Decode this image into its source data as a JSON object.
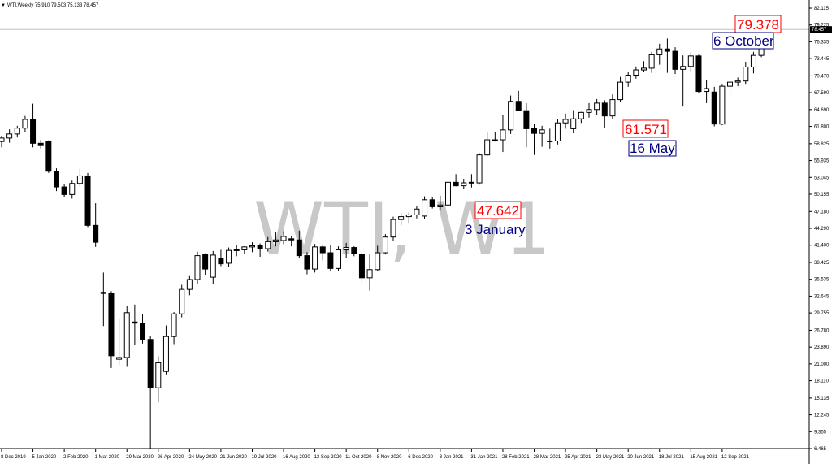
{
  "header": {
    "menu_icon": "triangle-down-icon",
    "text": "WTI,Weekly  75.910 79.503 75.133 78.457"
  },
  "watermark": "WTI, W1",
  "current_price_label": "78.457",
  "colors": {
    "up_body": "#ffffff",
    "down_body": "#000000",
    "line": "#000000",
    "ann_red": "#ff0000",
    "ann_blue": "#000080",
    "watermark": "#c8c8c8"
  },
  "annotations": [
    {
      "price_text": "79.378",
      "date_text": "6 October"
    },
    {
      "price_text": "61.571",
      "date_text": "16 May"
    },
    {
      "price_text": "47.642",
      "date_text": "3 January"
    }
  ],
  "chart_data": {
    "type": "candlestick",
    "ylim": [
      6.465,
      82.115
    ],
    "y_ticks": [
      "82.115",
      "79.225",
      "76.335",
      "73.445",
      "70.470",
      "67.590",
      "64.690",
      "61.800",
      "58.825",
      "55.935",
      "53.045",
      "50.155",
      "47.180",
      "44.290",
      "41.400",
      "38.425",
      "35.535",
      "32.645",
      "29.755",
      "26.780",
      "23.890",
      "21.000",
      "18.110",
      "15.135",
      "12.245",
      "9.355",
      "6.465"
    ],
    "x_ticks": [
      "8 Dec 2019",
      "5 Jan 2020",
      "2 Feb 2020",
      "1 Mar 2020",
      "29 Mar 2020",
      "26 Apr 2020",
      "24 May 2020",
      "21 Jun 2020",
      "19 Jul 2020",
      "16 Aug 2020",
      "13 Sep 2020",
      "11 Oct 2020",
      "8 Nov 2020",
      "6 Dec 2020",
      "3 Jan 2021",
      "31 Jan 2021",
      "28 Feb 2021",
      "28 Mar 2021",
      "25 Apr 2021",
      "23 May 2021",
      "20 Jun 2021",
      "18 Jul 2021",
      "15 Aug 2021",
      "12 Sep 2021"
    ],
    "candles": [
      {
        "o": 59.2,
        "h": 60.2,
        "l": 58.2,
        "c": 59.8
      },
      {
        "o": 59.8,
        "h": 61.3,
        "l": 59.0,
        "c": 60.5
      },
      {
        "o": 60.5,
        "h": 61.9,
        "l": 59.9,
        "c": 61.5
      },
      {
        "o": 61.5,
        "h": 63.6,
        "l": 60.8,
        "c": 63.0
      },
      {
        "o": 63.0,
        "h": 65.7,
        "l": 58.2,
        "c": 58.9
      },
      {
        "o": 58.9,
        "h": 59.5,
        "l": 58.0,
        "c": 58.5
      },
      {
        "o": 59.2,
        "h": 59.4,
        "l": 53.8,
        "c": 54.1
      },
      {
        "o": 54.1,
        "h": 54.6,
        "l": 50.7,
        "c": 51.4
      },
      {
        "o": 51.4,
        "h": 51.9,
        "l": 49.6,
        "c": 50.1
      },
      {
        "o": 50.1,
        "h": 52.5,
        "l": 49.4,
        "c": 52.0
      },
      {
        "o": 52.0,
        "h": 54.5,
        "l": 51.5,
        "c": 53.3
      },
      {
        "o": 53.3,
        "h": 53.8,
        "l": 44.5,
        "c": 44.8
      },
      {
        "o": 44.8,
        "h": 48.6,
        "l": 41.1,
        "c": 41.9
      },
      {
        "o": 33.3,
        "h": 36.7,
        "l": 27.5,
        "c": 33.1
      },
      {
        "o": 33.1,
        "h": 33.5,
        "l": 20.3,
        "c": 22.4
      },
      {
        "o": 21.8,
        "h": 28.7,
        "l": 20.8,
        "c": 22.1
      },
      {
        "o": 22.1,
        "h": 30.9,
        "l": 20.5,
        "c": 29.8
      },
      {
        "o": 28.2,
        "h": 31.2,
        "l": 24.3,
        "c": 28.0
      },
      {
        "o": 28.0,
        "h": 29.5,
        "l": 24.5,
        "c": 25.2
      },
      {
        "o": 25.2,
        "h": 25.8,
        "l": 6.5,
        "c": 16.9
      },
      {
        "o": 16.9,
        "h": 22.3,
        "l": 14.4,
        "c": 21.2
      },
      {
        "o": 19.7,
        "h": 27.6,
        "l": 19.2,
        "c": 25.7
      },
      {
        "o": 25.7,
        "h": 29.9,
        "l": 24.4,
        "c": 29.6
      },
      {
        "o": 29.6,
        "h": 34.6,
        "l": 29.0,
        "c": 33.8
      },
      {
        "o": 33.8,
        "h": 36.1,
        "l": 32.8,
        "c": 35.5
      },
      {
        "o": 35.5,
        "h": 40.3,
        "l": 34.8,
        "c": 39.6
      },
      {
        "o": 39.8,
        "h": 40.0,
        "l": 36.2,
        "c": 37.3
      },
      {
        "o": 35.9,
        "h": 40.4,
        "l": 34.7,
        "c": 39.7
      },
      {
        "o": 39.1,
        "h": 40.6,
        "l": 37.8,
        "c": 38.2
      },
      {
        "o": 38.3,
        "h": 41.0,
        "l": 37.6,
        "c": 40.5
      },
      {
        "o": 40.5,
        "h": 41.4,
        "l": 39.5,
        "c": 40.6
      },
      {
        "o": 40.6,
        "h": 41.2,
        "l": 39.9,
        "c": 41.1
      },
      {
        "o": 41.1,
        "h": 41.9,
        "l": 40.2,
        "c": 41.3
      },
      {
        "o": 41.3,
        "h": 41.7,
        "l": 39.4,
        "c": 40.8
      },
      {
        "o": 40.8,
        "h": 42.8,
        "l": 40.3,
        "c": 42.0
      },
      {
        "o": 42.0,
        "h": 43.6,
        "l": 41.2,
        "c": 42.3
      },
      {
        "o": 42.2,
        "h": 43.8,
        "l": 41.6,
        "c": 42.9
      },
      {
        "o": 42.5,
        "h": 43.0,
        "l": 41.2,
        "c": 42.3
      },
      {
        "o": 42.3,
        "h": 43.9,
        "l": 39.2,
        "c": 39.6
      },
      {
        "o": 39.6,
        "h": 40.2,
        "l": 36.4,
        "c": 37.3
      },
      {
        "o": 37.3,
        "h": 41.6,
        "l": 36.7,
        "c": 41.1
      },
      {
        "o": 41.1,
        "h": 41.4,
        "l": 38.8,
        "c": 40.1
      },
      {
        "o": 40.1,
        "h": 41.4,
        "l": 37.0,
        "c": 37.4
      },
      {
        "o": 37.4,
        "h": 41.2,
        "l": 37.0,
        "c": 40.6
      },
      {
        "o": 40.6,
        "h": 41.8,
        "l": 39.2,
        "c": 41.0
      },
      {
        "o": 41.0,
        "h": 41.2,
        "l": 39.5,
        "c": 40.0
      },
      {
        "o": 39.8,
        "h": 40.2,
        "l": 34.9,
        "c": 35.8
      },
      {
        "o": 35.8,
        "h": 39.8,
        "l": 33.6,
        "c": 37.2
      },
      {
        "o": 37.2,
        "h": 41.3,
        "l": 36.9,
        "c": 40.1
      },
      {
        "o": 40.1,
        "h": 43.3,
        "l": 39.8,
        "c": 42.8
      },
      {
        "o": 42.8,
        "h": 46.3,
        "l": 42.2,
        "c": 45.8
      },
      {
        "o": 45.8,
        "h": 46.9,
        "l": 44.8,
        "c": 46.3
      },
      {
        "o": 46.3,
        "h": 47.0,
        "l": 45.1,
        "c": 46.6
      },
      {
        "o": 46.6,
        "h": 48.1,
        "l": 46.0,
        "c": 47.6
      },
      {
        "o": 46.4,
        "h": 49.8,
        "l": 45.9,
        "c": 49.2
      },
      {
        "o": 49.2,
        "h": 49.6,
        "l": 47.7,
        "c": 48.0
      },
      {
        "o": 48.0,
        "h": 49.9,
        "l": 47.3,
        "c": 48.3
      },
      {
        "o": 48.3,
        "h": 52.4,
        "l": 47.9,
        "c": 52.2
      },
      {
        "o": 52.2,
        "h": 53.6,
        "l": 51.5,
        "c": 51.6
      },
      {
        "o": 51.6,
        "h": 52.8,
        "l": 51.1,
        "c": 52.1
      },
      {
        "o": 52.1,
        "h": 53.6,
        "l": 51.3,
        "c": 52.2
      },
      {
        "o": 52.1,
        "h": 57.2,
        "l": 51.8,
        "c": 56.9
      },
      {
        "o": 56.9,
        "h": 60.9,
        "l": 56.7,
        "c": 59.5
      },
      {
        "o": 59.5,
        "h": 60.9,
        "l": 59.2,
        "c": 59.5
      },
      {
        "o": 59.5,
        "h": 63.8,
        "l": 57.4,
        "c": 61.2
      },
      {
        "o": 61.2,
        "h": 67.1,
        "l": 60.5,
        "c": 66.1
      },
      {
        "o": 66.1,
        "h": 67.9,
        "l": 64.6,
        "c": 64.5
      },
      {
        "o": 64.5,
        "h": 65.8,
        "l": 58.2,
        "c": 61.4
      },
      {
        "o": 61.4,
        "h": 62.2,
        "l": 56.9,
        "c": 60.6
      },
      {
        "o": 60.6,
        "h": 61.9,
        "l": 58.3,
        "c": 61.2
      },
      {
        "o": 59.3,
        "h": 61.4,
        "l": 58.0,
        "c": 59.3
      },
      {
        "o": 59.3,
        "h": 63.1,
        "l": 58.7,
        "c": 62.4
      },
      {
        "o": 62.4,
        "h": 64.0,
        "l": 61.4,
        "c": 63.0
      },
      {
        "o": 61.4,
        "h": 64.6,
        "l": 60.6,
        "c": 63.1
      },
      {
        "o": 63.1,
        "h": 64.3,
        "l": 62.4,
        "c": 64.2
      },
      {
        "o": 64.2,
        "h": 65.8,
        "l": 63.3,
        "c": 64.7
      },
      {
        "o": 64.7,
        "h": 66.5,
        "l": 63.8,
        "c": 65.8
      },
      {
        "o": 65.8,
        "h": 66.3,
        "l": 61.6,
        "c": 63.6
      },
      {
        "o": 63.6,
        "h": 67.3,
        "l": 63.1,
        "c": 66.4
      },
      {
        "o": 66.4,
        "h": 70.3,
        "l": 66.0,
        "c": 69.4
      },
      {
        "o": 69.4,
        "h": 71.2,
        "l": 68.6,
        "c": 70.6
      },
      {
        "o": 70.6,
        "h": 72.1,
        "l": 70.0,
        "c": 71.5
      },
      {
        "o": 71.5,
        "h": 73.0,
        "l": 71.1,
        "c": 71.8
      },
      {
        "o": 71.8,
        "h": 74.6,
        "l": 71.0,
        "c": 74.1
      },
      {
        "o": 74.1,
        "h": 76.0,
        "l": 72.4,
        "c": 75.1
      },
      {
        "o": 75.1,
        "h": 76.9,
        "l": 71.0,
        "c": 74.7
      },
      {
        "o": 74.7,
        "h": 75.4,
        "l": 70.8,
        "c": 71.6
      },
      {
        "o": 71.6,
        "h": 74.0,
        "l": 65.2,
        "c": 72.1
      },
      {
        "o": 72.1,
        "h": 74.5,
        "l": 71.3,
        "c": 73.9
      },
      {
        "o": 73.9,
        "h": 74.1,
        "l": 67.6,
        "c": 67.8
      },
      {
        "o": 67.8,
        "h": 69.8,
        "l": 65.8,
        "c": 68.3
      },
      {
        "o": 67.7,
        "h": 68.6,
        "l": 61.8,
        "c": 62.2
      },
      {
        "o": 62.2,
        "h": 69.1,
        "l": 62.0,
        "c": 68.7
      },
      {
        "o": 68.7,
        "h": 69.6,
        "l": 66.9,
        "c": 69.4
      },
      {
        "o": 69.4,
        "h": 70.2,
        "l": 68.7,
        "c": 69.6
      },
      {
        "o": 69.6,
        "h": 72.9,
        "l": 69.1,
        "c": 72.0
      },
      {
        "o": 72.0,
        "h": 74.6,
        "l": 70.9,
        "c": 74.0
      },
      {
        "o": 74.0,
        "h": 77.1,
        "l": 73.7,
        "c": 75.9
      },
      {
        "o": 75.9,
        "h": 79.5,
        "l": 75.1,
        "c": 78.5
      }
    ]
  }
}
